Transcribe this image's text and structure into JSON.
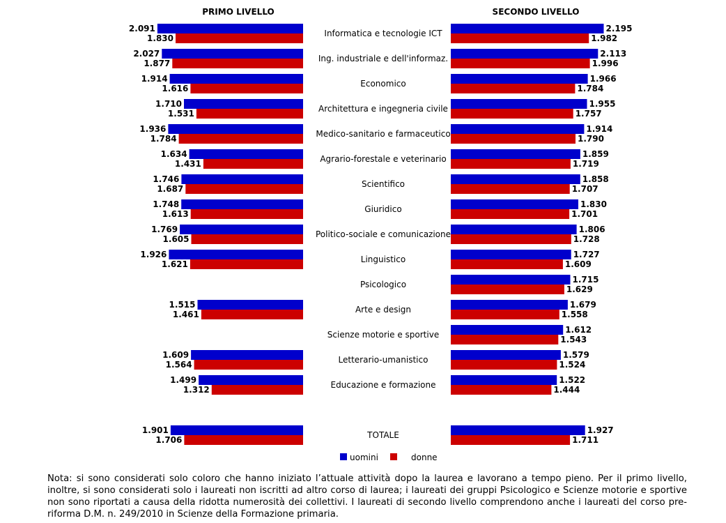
{
  "chart_data": {
    "type": "bar",
    "orientation": "horizontal",
    "layout": "butterfly",
    "panels": {
      "left": {
        "title": "PRIMO LIVELLO"
      },
      "right": {
        "title": "SECONDO LIVELLO"
      }
    },
    "series": [
      {
        "name": "uomini",
        "color": "#0000cc"
      },
      {
        "name": "donne",
        "color": "#cc0000"
      }
    ],
    "categories": [
      {
        "name": "Informatica e tecnologie ICT",
        "left": {
          "uomini": 2091,
          "donne": 1830
        },
        "right": {
          "uomini": 2195,
          "donne": 1982
        },
        "left_labels": [
          "2.091",
          "1.830"
        ],
        "right_labels": [
          "2.195",
          "1.982"
        ]
      },
      {
        "name": "Ing. industriale e dell'informaz.",
        "left": {
          "uomini": 2027,
          "donne": 1877
        },
        "right": {
          "uomini": 2113,
          "donne": 1996
        },
        "left_labels": [
          "2.027",
          "1.877"
        ],
        "right_labels": [
          "2.113",
          "1.996"
        ]
      },
      {
        "name": "Economico",
        "left": {
          "uomini": 1914,
          "donne": 1616
        },
        "right": {
          "uomini": 1966,
          "donne": 1784
        },
        "left_labels": [
          "1.914",
          "1.616"
        ],
        "right_labels": [
          "1.966",
          "1.784"
        ]
      },
      {
        "name": "Architettura e ingegneria civile",
        "left": {
          "uomini": 1710,
          "donne": 1531
        },
        "right": {
          "uomini": 1955,
          "donne": 1757
        },
        "left_labels": [
          "1.710",
          "1.531"
        ],
        "right_labels": [
          "1.955",
          "1.757"
        ]
      },
      {
        "name": "Medico-sanitario e farmaceutico",
        "left": {
          "uomini": 1936,
          "donne": 1784
        },
        "right": {
          "uomini": 1914,
          "donne": 1790
        },
        "left_labels": [
          "1.936",
          "1.784"
        ],
        "right_labels": [
          "1.914",
          "1.790"
        ]
      },
      {
        "name": "Agrario-forestale e veterinario",
        "left": {
          "uomini": 1634,
          "donne": 1431
        },
        "right": {
          "uomini": 1859,
          "donne": 1719
        },
        "left_labels": [
          "1.634",
          "1.431"
        ],
        "right_labels": [
          "1.859",
          "1.719"
        ]
      },
      {
        "name": "Scientifico",
        "left": {
          "uomini": 1746,
          "donne": 1687
        },
        "right": {
          "uomini": 1858,
          "donne": 1707
        },
        "left_labels": [
          "1.746",
          "1.687"
        ],
        "right_labels": [
          "1.858",
          "1.707"
        ]
      },
      {
        "name": "Giuridico",
        "left": {
          "uomini": 1748,
          "donne": 1613
        },
        "right": {
          "uomini": 1830,
          "donne": 1701
        },
        "left_labels": [
          "1.748",
          "1.613"
        ],
        "right_labels": [
          "1.830",
          "1.701"
        ]
      },
      {
        "name": "Politico-sociale e comunicazione",
        "left": {
          "uomini": 1769,
          "donne": 1605
        },
        "right": {
          "uomini": 1806,
          "donne": 1728
        },
        "left_labels": [
          "1.769",
          "1.605"
        ],
        "right_labels": [
          "1.806",
          "1.728"
        ]
      },
      {
        "name": "Linguistico",
        "left": {
          "uomini": 1926,
          "donne": 1621
        },
        "right": {
          "uomini": 1727,
          "donne": 1609
        },
        "left_labels": [
          "1.926",
          "1.621"
        ],
        "right_labels": [
          "1.727",
          "1.609"
        ]
      },
      {
        "name": "Psicologico",
        "left": null,
        "right": {
          "uomini": 1715,
          "donne": 1629
        },
        "left_labels": null,
        "right_labels": [
          "1.715",
          "1.629"
        ]
      },
      {
        "name": "Arte e design",
        "left": {
          "uomini": 1515,
          "donne": 1461
        },
        "right": {
          "uomini": 1679,
          "donne": 1558
        },
        "left_labels": [
          "1.515",
          "1.461"
        ],
        "right_labels": [
          "1.679",
          "1.558"
        ]
      },
      {
        "name": "Scienze motorie e sportive",
        "left": null,
        "right": {
          "uomini": 1612,
          "donne": 1543
        },
        "left_labels": null,
        "right_labels": [
          "1.612",
          "1.543"
        ]
      },
      {
        "name": "Letterario-umanistico",
        "left": {
          "uomini": 1609,
          "donne": 1564
        },
        "right": {
          "uomini": 1579,
          "donne": 1524
        },
        "left_labels": [
          "1.609",
          "1.564"
        ],
        "right_labels": [
          "1.579",
          "1.524"
        ]
      },
      {
        "name": "Educazione e formazione",
        "left": {
          "uomini": 1499,
          "donne": 1312
        },
        "right": {
          "uomini": 1522,
          "donne": 1444
        },
        "left_labels": [
          "1.499",
          "1.312"
        ],
        "right_labels": [
          "1.522",
          "1.444"
        ]
      }
    ],
    "total": {
      "name": "TOTALE",
      "left": {
        "uomini": 1901,
        "donne": 1706
      },
      "right": {
        "uomini": 1927,
        "donne": 1711
      },
      "left_labels": [
        "1.901",
        "1.706"
      ],
      "right_labels": [
        "1.927",
        "1.711"
      ]
    },
    "xlim": [
      0,
      2500
    ]
  },
  "note": "Nota: si sono considerati solo coloro che hanno iniziato l’attuale attività dopo la laurea e lavorano a tempo pieno. Per il primo livello, inoltre, si sono considerati solo i laureati non iscritti ad altro corso di laurea; i laureati dei gruppi Psicologico e Scienze motorie e sportive non sono riportati a causa della ridotta numerosità dei collettivi. I laureati di secondo livello comprendono anche i laureati del corso pre-riforma D.M. n. 249/2010 in Scienze della Formazione primaria."
}
